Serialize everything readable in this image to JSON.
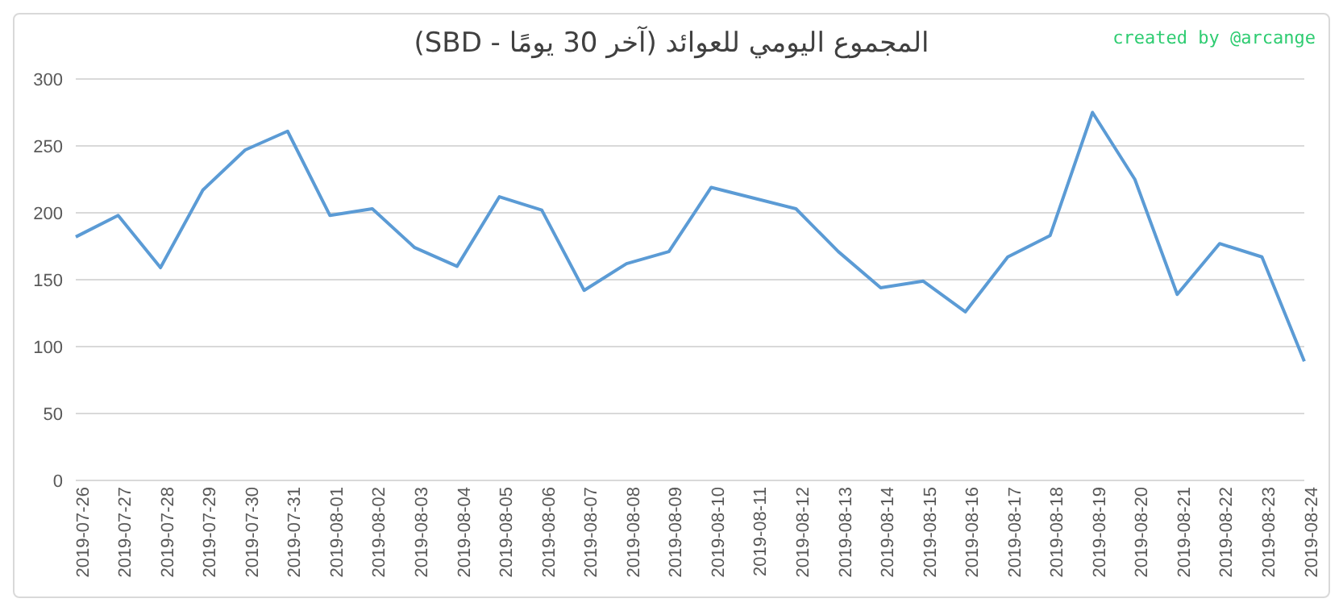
{
  "chart_data": {
    "type": "line",
    "title": "المجموع اليومي للعوائد (آخر 30 يومًا - SBD)",
    "annotations": [
      "created by @arcange"
    ],
    "categories": [
      "2019-07-26",
      "2019-07-27",
      "2019-07-28",
      "2019-07-29",
      "2019-07-30",
      "2019-07-31",
      "2019-08-01",
      "2019-08-02",
      "2019-08-03",
      "2019-08-04",
      "2019-08-05",
      "2019-08-06",
      "2019-08-07",
      "2019-08-08",
      "2019-08-09",
      "2019-08-10",
      "2019-08-11",
      "2019-08-12",
      "2019-08-13",
      "2019-08-14",
      "2019-08-15",
      "2019-08-16",
      "2019-08-17",
      "2019-08-18",
      "2019-08-19",
      "2019-08-20",
      "2019-08-21",
      "2019-08-22",
      "2019-08-23",
      "2019-08-24"
    ],
    "series": [
      {
        "color": "#5b9bd5",
        "values": [
          182,
          198,
          159,
          217,
          247,
          261,
          198,
          203,
          174,
          160,
          212,
          202,
          142,
          162,
          171,
          219,
          211,
          203,
          171,
          144,
          149,
          126,
          167,
          183,
          275,
          225,
          139,
          177,
          167,
          89
        ]
      }
    ],
    "ylim": [
      0,
      300
    ],
    "yticks": [
      0,
      50,
      100,
      150,
      200,
      250,
      300
    ],
    "grid": "y",
    "legend": false,
    "marker": "none",
    "line_style": "solid"
  }
}
